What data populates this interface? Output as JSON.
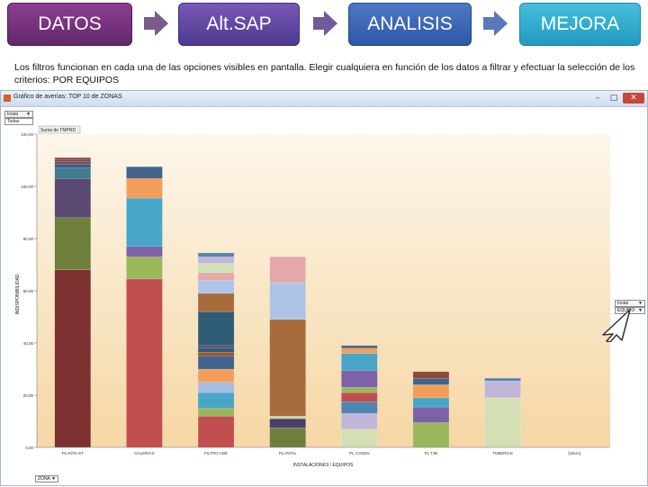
{
  "steps": [
    "DATOS",
    "Alt.SAP",
    "ANALISIS",
    "MEJORA"
  ],
  "instruction": "Los filtros funcionan en cada una de las opciones visibles en pantalla. Elegir cualquiera en función de los datos a filtrar y efectuar la selección de los criterios: POR EQUIPOS",
  "window": {
    "title": "Gráfico de averías: TOP 10 de ZONAS",
    "minimize": "–",
    "maximize": "□",
    "close": "✕"
  },
  "filters": {
    "top_field": "Instal",
    "top_value": "Todas",
    "right_field": "Instal",
    "right_value": "EQUIPO",
    "bottom_field": "ZONA"
  },
  "colors": {
    "plot_top": "#fdf6ea",
    "plot_bottom": "#f5d7a4"
  },
  "chart_data": {
    "type": "bar",
    "stacked": true,
    "title": "",
    "plot_label": "Suma de TMPRD",
    "xlabel": "INSTALACIONES / EQUIPOS",
    "ylabel": "INDISPONIBILIDAD",
    "ylim": [
      0,
      120
    ],
    "yticks": [
      "0,00",
      "20,00",
      "40,00",
      "60,00",
      "80,00",
      "100,00",
      "120,00"
    ],
    "grid": false,
    "categories": [
      "PLANTA ST",
      "GALERIAS",
      "FILTRO ADE",
      "PLANTAL",
      "PL COSEN",
      "PL TJB",
      "TUBERIAS",
      "(Vacío)"
    ],
    "stacks": [
      [
        {
          "value": 68.0,
          "color": "#7d3030"
        },
        {
          "value": 20.0,
          "color": "#6e7f3c"
        },
        {
          "value": 15.0,
          "color": "#5a4a72"
        },
        {
          "value": 4.0,
          "color": "#3d7d8e"
        },
        {
          "value": 1.5,
          "color": "#3a5a88"
        },
        {
          "value": 1.0,
          "color": "#8a4a35"
        },
        {
          "value": 0.8,
          "color": "#5b4b73"
        },
        {
          "value": 0.7,
          "color": "#9c3b3b"
        }
      ],
      [
        {
          "value": 64.5,
          "color": "#c24f4f"
        },
        {
          "value": 8.5,
          "color": "#9ab75c"
        },
        {
          "value": 4.0,
          "color": "#7c63a8"
        },
        {
          "value": 18.5,
          "color": "#48a6c8"
        },
        {
          "value": 7.5,
          "color": "#f29e5a"
        },
        {
          "value": 4.5,
          "color": "#41648f"
        }
      ],
      [
        {
          "value": 12.0,
          "color": "#c24f4f"
        },
        {
          "value": 3.0,
          "color": "#9ab75c"
        },
        {
          "value": 6.0,
          "color": "#48a6c8"
        },
        {
          "value": 4.0,
          "color": "#a7bde0"
        },
        {
          "value": 5.0,
          "color": "#f29e5a"
        },
        {
          "value": 5.0,
          "color": "#41648f"
        },
        {
          "value": 1.5,
          "color": "#a0522d"
        },
        {
          "value": 1.5,
          "color": "#2f5c75"
        },
        {
          "value": 1.0,
          "color": "#5a4a72"
        },
        {
          "value": 13.0,
          "color": "#2f5c75"
        },
        {
          "value": 7.0,
          "color": "#a86b3c"
        },
        {
          "value": 5.0,
          "color": "#aec4e6"
        },
        {
          "value": 3.0,
          "color": "#e3a9a9"
        },
        {
          "value": 3.5,
          "color": "#d3dfb4"
        },
        {
          "value": 2.5,
          "color": "#c1b6d9"
        },
        {
          "value": 1.5,
          "color": "#4f86b2"
        }
      ],
      [
        {
          "value": 7.5,
          "color": "#6e7f3c"
        },
        {
          "value": 3.5,
          "color": "#4a3f6b"
        },
        {
          "value": 1.0,
          "color": "#c7d7a8"
        },
        {
          "value": 37.0,
          "color": "#a86b3c"
        },
        {
          "value": 14.0,
          "color": "#aec4e6"
        },
        {
          "value": 10.0,
          "color": "#e3a9a9"
        }
      ],
      [
        {
          "value": 7.0,
          "color": "#d3dfb4"
        },
        {
          "value": 6.0,
          "color": "#c1b6d9"
        },
        {
          "value": 4.5,
          "color": "#4f86b2"
        },
        {
          "value": 3.5,
          "color": "#c24f4f"
        },
        {
          "value": 2.0,
          "color": "#9ab75c"
        },
        {
          "value": 6.5,
          "color": "#7c63a8"
        },
        {
          "value": 6.5,
          "color": "#48a6c8"
        },
        {
          "value": 2.0,
          "color": "#f29e5a"
        },
        {
          "value": 1.0,
          "color": "#41648f"
        }
      ],
      [
        {
          "value": 9.5,
          "color": "#9ab75c"
        },
        {
          "value": 6.0,
          "color": "#7c63a8"
        },
        {
          "value": 3.5,
          "color": "#48a6c8"
        },
        {
          "value": 5.0,
          "color": "#f29e5a"
        },
        {
          "value": 2.5,
          "color": "#41648f"
        },
        {
          "value": 2.5,
          "color": "#8a4a35"
        }
      ],
      [
        {
          "value": 19.0,
          "color": "#d3dfb4"
        },
        {
          "value": 6.5,
          "color": "#c1b6d9"
        },
        {
          "value": 1.0,
          "color": "#4f86b2"
        }
      ],
      []
    ]
  }
}
